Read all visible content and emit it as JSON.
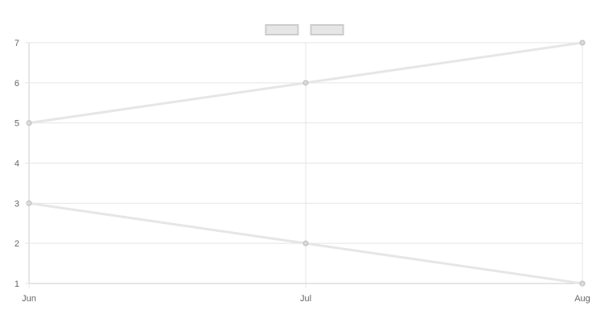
{
  "chart_data": {
    "type": "line",
    "categories": [
      "Jun",
      "Jul",
      "Aug"
    ],
    "series": [
      {
        "values": [
          5,
          6,
          7
        ]
      },
      {
        "values": [
          3,
          2,
          1
        ]
      }
    ],
    "title": "",
    "xlabel": "",
    "ylabel": "",
    "ylim": [
      1,
      7
    ],
    "yticks": [
      "1",
      "2",
      "3",
      "4",
      "5",
      "6",
      "7"
    ],
    "grid": true,
    "legend_position": "top",
    "colors": {
      "series_line": "#e6e6e6",
      "point_fill": "#d8d8d8",
      "point_stroke": "#bdbdbd",
      "legend_box_fill": "#e6e6e6",
      "legend_box_stroke": "#cccccc",
      "grid": "#e5e5e5",
      "axis": "#cccccc",
      "tick_text": "#666666"
    }
  }
}
